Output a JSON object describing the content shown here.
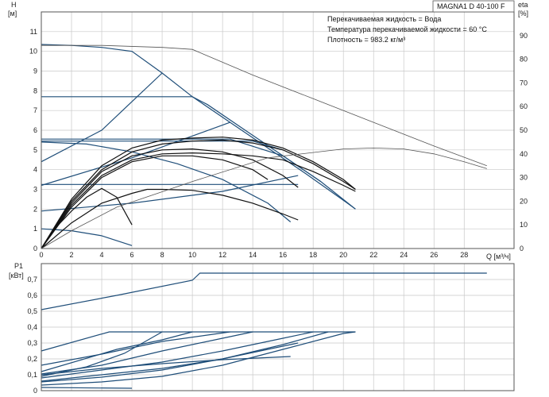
{
  "chart_data": [
    {
      "type": "line",
      "title": "MAGNA1 D 40-100 F",
      "ylabel": "H",
      "yunit": "[м]",
      "ylabel2": "eta",
      "yunit2": "[%]",
      "xlabel": "Q [м³/ч]",
      "xlim": [
        0,
        31.3
      ],
      "ylim": [
        0,
        12
      ],
      "y2lim": [
        0,
        100
      ],
      "xticks": [
        "0",
        "2",
        "4",
        "6",
        "8",
        "10",
        "12",
        "14",
        "16",
        "18",
        "20",
        "22",
        "24",
        "26",
        "28"
      ],
      "yticks": [
        "0",
        "1",
        "2",
        "3",
        "4",
        "5",
        "6",
        "7",
        "8",
        "9",
        "10",
        "11"
      ],
      "y2ticks": [
        "0",
        "10",
        "20",
        "30",
        "40",
        "50",
        "60",
        "70",
        "80",
        "90"
      ],
      "grid": true,
      "annotations": [
        "Перекачиваемая жидкость = Вода",
        "Температура перекачиваемой жидкости = 60 °C",
        "Плотность = 983.2 кг/м³"
      ],
      "series": [
        {
          "color": "#1f4e79",
          "points": [
            [
              0,
              10.35
            ],
            [
              2,
              10.3
            ],
            [
              4,
              10.2
            ],
            [
              6,
              10.0
            ],
            [
              8,
              8.9
            ],
            [
              10,
              7.7
            ],
            [
              12.5,
              6.4
            ],
            [
              15,
              5.1
            ],
            [
              17.5,
              3.8
            ],
            [
              20,
              2.45
            ],
            [
              20.8,
              2.0
            ]
          ]
        },
        {
          "color": "#1f4e79",
          "points": [
            [
              0,
              7.7
            ],
            [
              10,
              7.7
            ],
            [
              11,
              7.3
            ],
            [
              13.5,
              6.0
            ],
            [
              16,
              4.7
            ],
            [
              18.5,
              3.4
            ],
            [
              20.8,
              2.0
            ]
          ]
        },
        {
          "color": "#1f4e79",
          "points": [
            [
              0,
              5.55
            ],
            [
              12.5,
              5.55
            ],
            [
              16,
              4.7
            ],
            [
              18.5,
              3.4
            ]
          ]
        },
        {
          "color": "#1f4e79",
          "points": [
            [
              0,
              5.45
            ],
            [
              14,
              5.45
            ],
            [
              16,
              5.0
            ]
          ]
        },
        {
          "color": "#1f4e79",
          "points": [
            [
              0,
              3.25
            ],
            [
              17,
              3.25
            ]
          ]
        },
        {
          "color": "#1f4e79",
          "points": [
            [
              0,
              4.4
            ],
            [
              4,
              6.0
            ],
            [
              8,
              8.9
            ]
          ]
        },
        {
          "color": "#1f4e79",
          "points": [
            [
              0,
              3.2
            ],
            [
              6,
              4.6
            ],
            [
              12.5,
              6.4
            ]
          ]
        },
        {
          "color": "#1f4e79",
          "points": [
            [
              0,
              1.9
            ],
            [
              6,
              2.3
            ],
            [
              12,
              2.9
            ],
            [
              17,
              3.7
            ]
          ]
        },
        {
          "color": "#1f4e79",
          "points": [
            [
              0,
              5.4
            ],
            [
              3,
              5.3
            ],
            [
              6,
              4.9
            ],
            [
              9,
              4.3
            ],
            [
              12,
              3.5
            ],
            [
              15,
              2.3
            ],
            [
              16.5,
              1.35
            ]
          ]
        },
        {
          "color": "#1f4e79",
          "points": [
            [
              0,
              1.0
            ],
            [
              2,
              0.9
            ],
            [
              4,
              0.65
            ],
            [
              6,
              0.15
            ]
          ]
        },
        {
          "color": "#111111",
          "points": [
            [
              0,
              0
            ],
            [
              2,
              1.3
            ],
            [
              4,
              2.3
            ],
            [
              6,
              2.8
            ],
            [
              7,
              3.0
            ],
            [
              8,
              3.0
            ],
            [
              10,
              2.95
            ],
            [
              12,
              2.7
            ],
            [
              14,
              2.3
            ],
            [
              16,
              1.75
            ],
            [
              17,
              1.45
            ]
          ]
        },
        {
          "color": "#111111",
          "points": [
            [
              0,
              0
            ],
            [
              1,
              1.1
            ],
            [
              2,
              1.9
            ],
            [
              3,
              2.6
            ],
            [
              4,
              3.05
            ],
            [
              5,
              2.6
            ],
            [
              6,
              1.2
            ]
          ]
        },
        {
          "color": "#111111",
          "points": [
            [
              0,
              0
            ],
            [
              2,
              2.2
            ],
            [
              4,
              3.7
            ],
            [
              6,
              4.5
            ],
            [
              8,
              4.8
            ],
            [
              10,
              4.85
            ],
            [
              12,
              4.8
            ],
            [
              14,
              4.7
            ],
            [
              16,
              4.5
            ],
            [
              18,
              3.9
            ],
            [
              20,
              3.2
            ],
            [
              20.8,
              2.9
            ]
          ]
        },
        {
          "color": "#111111",
          "points": [
            [
              0,
              0
            ],
            [
              2,
              2.4
            ],
            [
              4,
              4.0
            ],
            [
              6,
              4.9
            ],
            [
              8,
              5.3
            ],
            [
              10,
              5.45
            ],
            [
              12,
              5.5
            ],
            [
              14,
              5.35
            ],
            [
              16,
              5.0
            ],
            [
              18,
              4.3
            ],
            [
              20,
              3.4
            ],
            [
              20.8,
              3.0
            ]
          ]
        },
        {
          "color": "#111111",
          "points": [
            [
              0,
              0
            ],
            [
              2,
              2.5
            ],
            [
              4,
              4.2
            ],
            [
              6,
              5.1
            ],
            [
              8,
              5.5
            ],
            [
              10,
              5.6
            ],
            [
              12,
              5.65
            ],
            [
              14,
              5.5
            ],
            [
              16,
              5.1
            ],
            [
              18,
              4.4
            ],
            [
              20,
              3.5
            ],
            [
              20.8,
              3.0
            ]
          ]
        },
        {
          "color": "#111111",
          "points": [
            [
              0,
              0
            ],
            [
              2,
              2.3
            ],
            [
              4,
              3.9
            ],
            [
              6,
              4.7
            ],
            [
              8,
              5.0
            ],
            [
              10,
              5.05
            ],
            [
              12,
              4.9
            ],
            [
              14,
              4.5
            ],
            [
              16,
              3.7
            ],
            [
              17,
              3.1
            ]
          ]
        },
        {
          "color": "#111111",
          "points": [
            [
              0,
              0
            ],
            [
              2,
              2.1
            ],
            [
              4,
              3.6
            ],
            [
              6,
              4.4
            ],
            [
              8,
              4.7
            ],
            [
              10,
              4.7
            ],
            [
              12,
              4.5
            ],
            [
              14,
              4.0
            ],
            [
              15,
              3.5
            ]
          ]
        },
        {
          "color": "#555555",
          "points": [
            [
              0,
              10.3
            ],
            [
              4,
              10.3
            ],
            [
              8,
              10.2
            ],
            [
              10,
              10.1
            ],
            [
              14,
              8.8
            ],
            [
              18,
              7.6
            ],
            [
              22,
              6.4
            ],
            [
              26,
              5.2
            ],
            [
              29.5,
              4.2
            ]
          ]
        },
        {
          "color": "#555555",
          "points": [
            [
              0,
              0
            ],
            [
              2,
              0.9
            ],
            [
              5,
              2.1
            ],
            [
              10,
              3.4
            ],
            [
              15,
              4.6
            ],
            [
              20,
              5.05
            ],
            [
              22,
              5.1
            ],
            [
              24,
              5.05
            ],
            [
              26,
              4.8
            ],
            [
              28,
              4.4
            ],
            [
              29.5,
              4.05
            ]
          ]
        }
      ]
    },
    {
      "type": "line",
      "ylabel": "P1",
      "yunit": "[кВт]",
      "xlim": [
        0,
        31.3
      ],
      "ylim": [
        0,
        0.8
      ],
      "yticks": [
        "0",
        "0,1",
        "0,2",
        "0,3",
        "0,4",
        "0,5",
        "0,6",
        "0,7"
      ],
      "grid": true,
      "series": [
        {
          "color": "#1f4e79",
          "points": [
            [
              0,
              0.51
            ],
            [
              5,
              0.6
            ],
            [
              10,
              0.695
            ],
            [
              10.5,
              0.74
            ],
            [
              29.5,
              0.74
            ]
          ]
        },
        {
          "color": "#1f4e79",
          "points": [
            [
              0,
              0.25
            ],
            [
              4.5,
              0.37
            ],
            [
              20.8,
              0.37
            ]
          ]
        },
        {
          "color": "#1f4e79",
          "points": [
            [
              0,
              0.16
            ],
            [
              4,
              0.23
            ],
            [
              8,
              0.31
            ],
            [
              12.5,
              0.37
            ]
          ]
        },
        {
          "color": "#1f4e79",
          "points": [
            [
              0,
              0.105
            ],
            [
              4,
              0.16
            ],
            [
              8,
              0.25
            ],
            [
              12,
              0.33
            ],
            [
              14,
              0.37
            ]
          ]
        },
        {
          "color": "#1f4e79",
          "points": [
            [
              0,
              0.08
            ],
            [
              4,
              0.13
            ],
            [
              8,
              0.18
            ],
            [
              12,
              0.25
            ],
            [
              16,
              0.33
            ],
            [
              18,
              0.37
            ]
          ]
        },
        {
          "color": "#1f4e79",
          "points": [
            [
              0,
              0.055
            ],
            [
              4,
              0.085
            ],
            [
              8,
              0.13
            ],
            [
              12,
              0.2
            ],
            [
              16,
              0.29
            ],
            [
              19,
              0.37
            ]
          ]
        },
        {
          "color": "#1f4e79",
          "points": [
            [
              0,
              0.035
            ],
            [
              4,
              0.055
            ],
            [
              8,
              0.09
            ],
            [
              12,
              0.16
            ],
            [
              16,
              0.26
            ],
            [
              20,
              0.36
            ],
            [
              20.8,
              0.37
            ]
          ]
        },
        {
          "color": "#1f4e79",
          "points": [
            [
              0,
              0.02
            ],
            [
              6,
              0.015
            ]
          ]
        },
        {
          "color": "#1f4e79",
          "points": [
            [
              0,
              0.1
            ],
            [
              4,
              0.14
            ],
            [
              8,
              0.17
            ],
            [
              12,
              0.195
            ],
            [
              16.5,
              0.215
            ]
          ]
        },
        {
          "color": "#1f4e79",
          "points": [
            [
              0,
              0.09
            ],
            [
              3,
              0.15
            ],
            [
              5.5,
              0.235
            ],
            [
              8,
              0.37
            ]
          ]
        },
        {
          "color": "#1f4e79",
          "points": [
            [
              0,
              0.12
            ],
            [
              5,
              0.26
            ],
            [
              8,
              0.32
            ],
            [
              10,
              0.37
            ]
          ]
        },
        {
          "color": "#1f4e79",
          "points": [
            [
              0,
              0.06
            ],
            [
              4,
              0.1
            ],
            [
              8,
              0.14
            ],
            [
              12,
              0.2
            ],
            [
              15,
              0.26
            ],
            [
              17,
              0.3
            ]
          ]
        }
      ]
    }
  ]
}
